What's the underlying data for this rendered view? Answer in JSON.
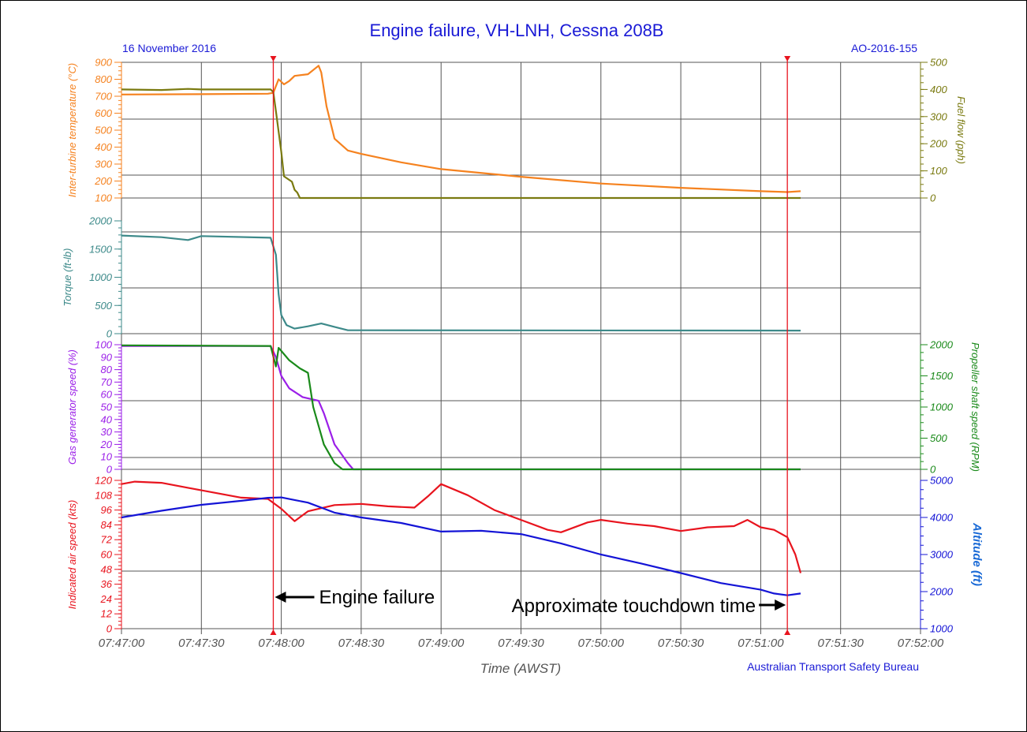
{
  "header": {
    "title": "Engine failure, VH-LNH, Cessna 208B",
    "date": "16 November 2016",
    "report_id": "AO-2016-155",
    "credit": "Australian Transport Safety Bureau"
  },
  "colors": {
    "title": "#1a1ad6",
    "orange": "#f5821f",
    "olive": "#7a7a10",
    "teal": "#3d8a8a",
    "purple": "#9b1fe8",
    "green": "#1a8a1a",
    "red": "#e8141e",
    "blue": "#1414d6",
    "altitude_label": "#1a6ad6",
    "marker": "#e8141e",
    "grid": "#555555",
    "axis_text": "#555555"
  },
  "chart_data": {
    "type": "line",
    "xlabel": "Time (AWST)",
    "x_ticks": [
      "07:47:00",
      "07:47:30",
      "07:48:00",
      "07:48:30",
      "07:49:00",
      "07:49:30",
      "07:50:00",
      "07:50:30",
      "07:51:00",
      "07:51:30",
      "07:52:00"
    ],
    "xlim": [
      "07:47:00",
      "07:52:00"
    ],
    "markers": [
      {
        "time": "07:47:57",
        "label": "Engine failure",
        "arrow": "left"
      },
      {
        "time": "07:51:10",
        "label": "Approximate touchdown time",
        "arrow": "right"
      }
    ],
    "panels": [
      {
        "left_axis": {
          "label": "Inter-turbine temperature (°C)",
          "ylim": [
            100,
            900
          ],
          "ticks": [
            "100",
            "200",
            "300",
            "400",
            "500",
            "600",
            "700",
            "800",
            "900"
          ],
          "color_key": "orange"
        },
        "right_axis": {
          "label": "Fuel flow (pph)",
          "ylim": [
            0,
            500
          ],
          "ticks": [
            "0",
            "100",
            "200",
            "300",
            "400",
            "500"
          ],
          "color_key": "olive"
        },
        "series": [
          {
            "axis": "left",
            "color_key": "orange",
            "x": [
              "07:47:00",
              "07:47:30",
              "07:47:55",
              "07:47:57",
              "07:47:59",
              "07:48:01",
              "07:48:03",
              "07:48:05",
              "07:48:10",
              "07:48:14",
              "07:48:15",
              "07:48:17",
              "07:48:20",
              "07:48:25",
              "07:48:30",
              "07:48:45",
              "07:49:00",
              "07:49:30",
              "07:50:00",
              "07:50:30",
              "07:51:00",
              "07:51:10",
              "07:51:15"
            ],
            "y": [
              710,
              712,
              715,
              720,
              800,
              770,
              790,
              820,
              830,
              880,
              840,
              640,
              450,
              380,
              360,
              310,
              270,
              225,
              185,
              160,
              140,
              135,
              140
            ]
          },
          {
            "axis": "right",
            "color_key": "olive",
            "x": [
              "07:47:00",
              "07:47:15",
              "07:47:25",
              "07:47:30",
              "07:47:56",
              "07:47:57",
              "07:47:58",
              "07:48:00",
              "07:48:01",
              "07:48:04",
              "07:48:05",
              "07:48:06",
              "07:48:07",
              "07:51:15"
            ],
            "y": [
              400,
              398,
              402,
              400,
              400,
              390,
              320,
              170,
              80,
              60,
              30,
              20,
              0,
              0
            ]
          }
        ]
      },
      {
        "left_axis": {
          "label": "Torque (ft-lb)",
          "ylim": [
            0,
            2000
          ],
          "ticks": [
            "0",
            "500",
            "1000",
            "1500",
            "2000"
          ],
          "color_key": "teal"
        },
        "series": [
          {
            "axis": "left",
            "color_key": "teal",
            "x": [
              "07:47:00",
              "07:47:15",
              "07:47:25",
              "07:47:30",
              "07:47:56",
              "07:47:58",
              "07:47:59",
              "07:48:00",
              "07:48:02",
              "07:48:05",
              "07:48:10",
              "07:48:15",
              "07:48:20",
              "07:48:25",
              "07:51:15"
            ],
            "y": [
              1740,
              1710,
              1660,
              1730,
              1700,
              1400,
              700,
              330,
              150,
              90,
              130,
              180,
              120,
              60,
              55
            ]
          }
        ]
      },
      {
        "left_axis": {
          "label": "Gas generator speed (%)",
          "ylim": [
            0,
            100
          ],
          "ticks": [
            "0",
            "10",
            "20",
            "30",
            "40",
            "50",
            "60",
            "70",
            "80",
            "90",
            "100"
          ],
          "color_key": "purple"
        },
        "right_axis": {
          "label": "Propeller shaft speed (RPM)",
          "ylim": [
            0,
            2000
          ],
          "ticks": [
            "0",
            "500",
            "1000",
            "1500",
            "2000"
          ],
          "color_key": "green"
        },
        "series": [
          {
            "axis": "left",
            "color_key": "purple",
            "x": [
              "07:47:00",
              "07:47:56",
              "07:47:58",
              "07:48:00",
              "07:48:03",
              "07:48:08",
              "07:48:14",
              "07:48:16",
              "07:48:20",
              "07:48:25",
              "07:48:27",
              "07:51:15"
            ],
            "y": [
              99,
              99,
              90,
              75,
              65,
              58,
              55,
              45,
              20,
              5,
              0,
              0
            ]
          },
          {
            "axis": "right",
            "color_key": "green",
            "x": [
              "07:47:00",
              "07:47:56",
              "07:47:58",
              "07:47:59",
              "07:48:00",
              "07:48:03",
              "07:48:07",
              "07:48:10",
              "07:48:12",
              "07:48:16",
              "07:48:20",
              "07:48:23",
              "07:51:15"
            ],
            "y": [
              1990,
              1980,
              1650,
              1950,
              1900,
              1750,
              1620,
              1550,
              1000,
              400,
              100,
              0,
              0
            ]
          }
        ]
      },
      {
        "left_axis": {
          "label": "Indicated air speed (kts)",
          "ylim": [
            0,
            120
          ],
          "ticks": [
            "0",
            "12",
            "24",
            "36",
            "48",
            "60",
            "72",
            "84",
            "96",
            "108",
            "120"
          ],
          "color_key": "red"
        },
        "right_axis": {
          "label": "Altitude (ft)",
          "ylim": [
            1000,
            5000
          ],
          "ticks": [
            "1000",
            "2000",
            "3000",
            "4000",
            "5000"
          ],
          "color_key": "blue"
        },
        "series": [
          {
            "axis": "left",
            "color_key": "red",
            "x": [
              "07:47:00",
              "07:47:05",
              "07:47:15",
              "07:47:25",
              "07:47:35",
              "07:47:45",
              "07:47:55",
              "07:48:00",
              "07:48:05",
              "07:48:10",
              "07:48:20",
              "07:48:30",
              "07:48:40",
              "07:48:50",
              "07:48:55",
              "07:49:00",
              "07:49:10",
              "07:49:20",
              "07:49:30",
              "07:49:40",
              "07:49:45",
              "07:49:55",
              "07:50:00",
              "07:50:10",
              "07:50:20",
              "07:50:30",
              "07:50:40",
              "07:50:50",
              "07:50:55",
              "07:51:00",
              "07:51:05",
              "07:51:10",
              "07:51:13",
              "07:51:15"
            ],
            "y": [
              117,
              119,
              118,
              114,
              110,
              106,
              105,
              97,
              87,
              95,
              100,
              101,
              99,
              98,
              107,
              117,
              108,
              96,
              88,
              80,
              78,
              86,
              88,
              85,
              83,
              79,
              82,
              83,
              88,
              82,
              80,
              74,
              60,
              45
            ]
          },
          {
            "axis": "right",
            "color_key": "blue",
            "x": [
              "07:47:00",
              "07:47:15",
              "07:47:30",
              "07:47:45",
              "07:47:55",
              "07:48:00",
              "07:48:10",
              "07:48:20",
              "07:48:30",
              "07:48:45",
              "07:49:00",
              "07:49:15",
              "07:49:30",
              "07:49:45",
              "07:50:00",
              "07:50:15",
              "07:50:30",
              "07:50:45",
              "07:51:00",
              "07:51:05",
              "07:51:10",
              "07:51:15"
            ],
            "y": [
              4000,
              4180,
              4340,
              4450,
              4530,
              4540,
              4400,
              4130,
              4000,
              3850,
              3620,
              3640,
              3550,
              3300,
              3000,
              2760,
              2500,
              2230,
              2050,
              1950,
              1900,
              1950
            ]
          }
        ]
      }
    ]
  }
}
